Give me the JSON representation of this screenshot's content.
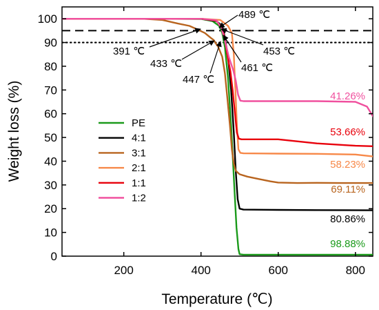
{
  "chart_data": {
    "type": "line",
    "title": "",
    "xlabel": "Temperature (℃)",
    "ylabel": "Weight loss (%)",
    "xlim": [
      40,
      845
    ],
    "ylim": [
      0,
      105
    ],
    "x_ticks": [
      200,
      400,
      600,
      800
    ],
    "y_ticks": [
      0,
      10,
      20,
      30,
      40,
      50,
      60,
      70,
      80,
      90,
      100
    ],
    "grid": false,
    "legend_position": "middle-left",
    "reference_lines": [
      {
        "y": 95,
        "style": "dashed"
      },
      {
        "y": 90,
        "style": "dotted"
      }
    ],
    "series": [
      {
        "name": "PE",
        "color": "#1a9a1a",
        "x": [
          40,
          300,
          400,
          430,
          447,
          455,
          462,
          470,
          478,
          486,
          492,
          497,
          500,
          510,
          600,
          700,
          845
        ],
        "y": [
          100,
          100,
          99.9,
          99,
          97,
          94,
          88,
          75,
          55,
          30,
          12,
          3,
          0.8,
          0.6,
          0.6,
          0.6,
          0.6
        ],
        "end_label": "98.88%"
      },
      {
        "name": "4:1",
        "color": "#000000",
        "x": [
          40,
          300,
          400,
          440,
          455,
          462,
          470,
          478,
          485,
          490,
          495,
          500,
          510,
          600,
          700,
          845
        ],
        "y": [
          100,
          100,
          100,
          99,
          97,
          92,
          84,
          70,
          52,
          36,
          24,
          20,
          19.6,
          19.5,
          19.4,
          19.3
        ],
        "end_label": "80.86%"
      },
      {
        "name": "3:1",
        "color": "#b8641e",
        "x": [
          40,
          250,
          300,
          340,
          370,
          391,
          410,
          425,
          433,
          445,
          455,
          462,
          468,
          475,
          480,
          485,
          490,
          500,
          520,
          550,
          580,
          600,
          650,
          700,
          760,
          845
        ],
        "y": [
          100,
          100,
          99.5,
          98,
          97,
          95.5,
          94,
          92,
          91,
          88,
          84,
          77,
          67,
          55,
          45,
          39,
          36,
          34.5,
          33.5,
          32.5,
          31.5,
          31,
          30.8,
          30.9,
          30.8,
          30.8
        ],
        "end_label": "69.11%"
      },
      {
        "name": "2:1",
        "color": "#f78848",
        "x": [
          40,
          300,
          400,
          450,
          470,
          480,
          485,
          489,
          493,
          497,
          502,
          510,
          600,
          700,
          800,
          845
        ],
        "y": [
          100,
          100,
          100,
          99.5,
          97,
          94,
          85,
          70,
          55,
          45,
          43.5,
          43.3,
          43.2,
          43.1,
          42.8,
          42
        ],
        "end_label": "58.23%"
      },
      {
        "name": "1:1",
        "color": "#e8000b",
        "x": [
          40,
          300,
          400,
          440,
          452,
          458,
          461,
          466,
          470,
          476,
          482,
          488,
          493,
          498,
          505,
          600,
          700,
          800,
          845
        ],
        "y": [
          100,
          100,
          100,
          99.2,
          96.5,
          94,
          92,
          87,
          83,
          78,
          70,
          60,
          52,
          49.5,
          49.2,
          49.2,
          47.5,
          46.5,
          46.3
        ],
        "end_label": "53.66%"
      },
      {
        "name": "1:2",
        "color": "#f0509e",
        "x": [
          40,
          300,
          400,
          440,
          453,
          460,
          466,
          472,
          478,
          484,
          490,
          496,
          502,
          510,
          600,
          700,
          800,
          830,
          845
        ],
        "y": [
          100,
          100,
          100,
          99.4,
          96,
          92,
          88,
          84,
          81,
          78,
          74,
          68,
          65.5,
          65.3,
          65.3,
          65.3,
          65,
          63,
          59
        ],
        "end_label": "41.26%"
      }
    ],
    "annotations": [
      {
        "text": "391 ℃",
        "x": 391,
        "y": 95
      },
      {
        "text": "433 ℃",
        "x": 433,
        "y": 90
      },
      {
        "text": "447 ℃",
        "x": 447,
        "y": 90
      },
      {
        "text": "489 ℃",
        "x": 455,
        "y": 95
      },
      {
        "text": "453 ℃",
        "x": 453,
        "y": 95
      },
      {
        "text": "461 ℃",
        "x": 461,
        "y": 92
      }
    ]
  }
}
